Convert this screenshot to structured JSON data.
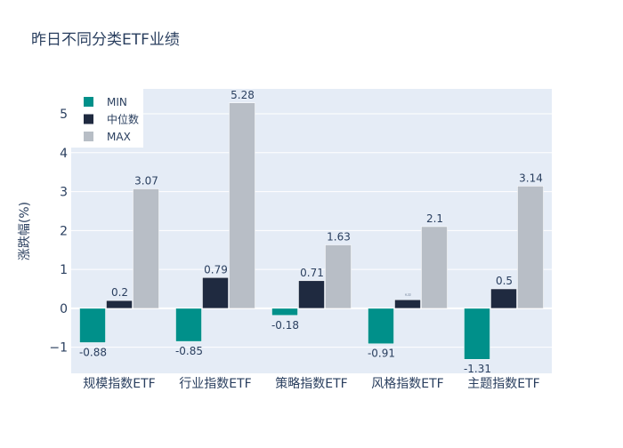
{
  "chart_data": {
    "type": "bar",
    "title": "昨日不同分类ETF业绩",
    "xlabel": "",
    "ylabel": "涨跌幅(%)",
    "ylim": [
      -1.67,
      5.64
    ],
    "yticks": [
      -1,
      0,
      1,
      2,
      3,
      4,
      5
    ],
    "ytick_labels": [
      "−1",
      "0",
      "1",
      "2",
      "3",
      "4",
      "5"
    ],
    "grid": true,
    "legend_position": "top-left",
    "categories": [
      "规模指数ETF",
      "行业指数ETF",
      "策略指数ETF",
      "风格指数ETF",
      "主题指数ETF"
    ],
    "series": [
      {
        "name": "MIN",
        "color": "#00908a",
        "values": [
          -0.88,
          -0.85,
          -0.18,
          -0.91,
          -1.31
        ],
        "labels": [
          "-0.88",
          "-0.85",
          "-0.18",
          "-0.91",
          "-1.31"
        ]
      },
      {
        "name": "中位数",
        "color": "#1f2a40",
        "values": [
          0.2,
          0.79,
          0.71,
          0.22,
          0.5
        ],
        "labels": [
          "0.2",
          "0.79",
          "0.71",
          "0.22",
          "0.5"
        ]
      },
      {
        "name": "MAX",
        "color": "#b8bec6",
        "values": [
          3.07,
          5.28,
          1.63,
          2.1,
          3.14
        ],
        "labels": [
          "3.07",
          "5.28",
          "1.63",
          "2.1",
          "3.14"
        ]
      }
    ]
  }
}
